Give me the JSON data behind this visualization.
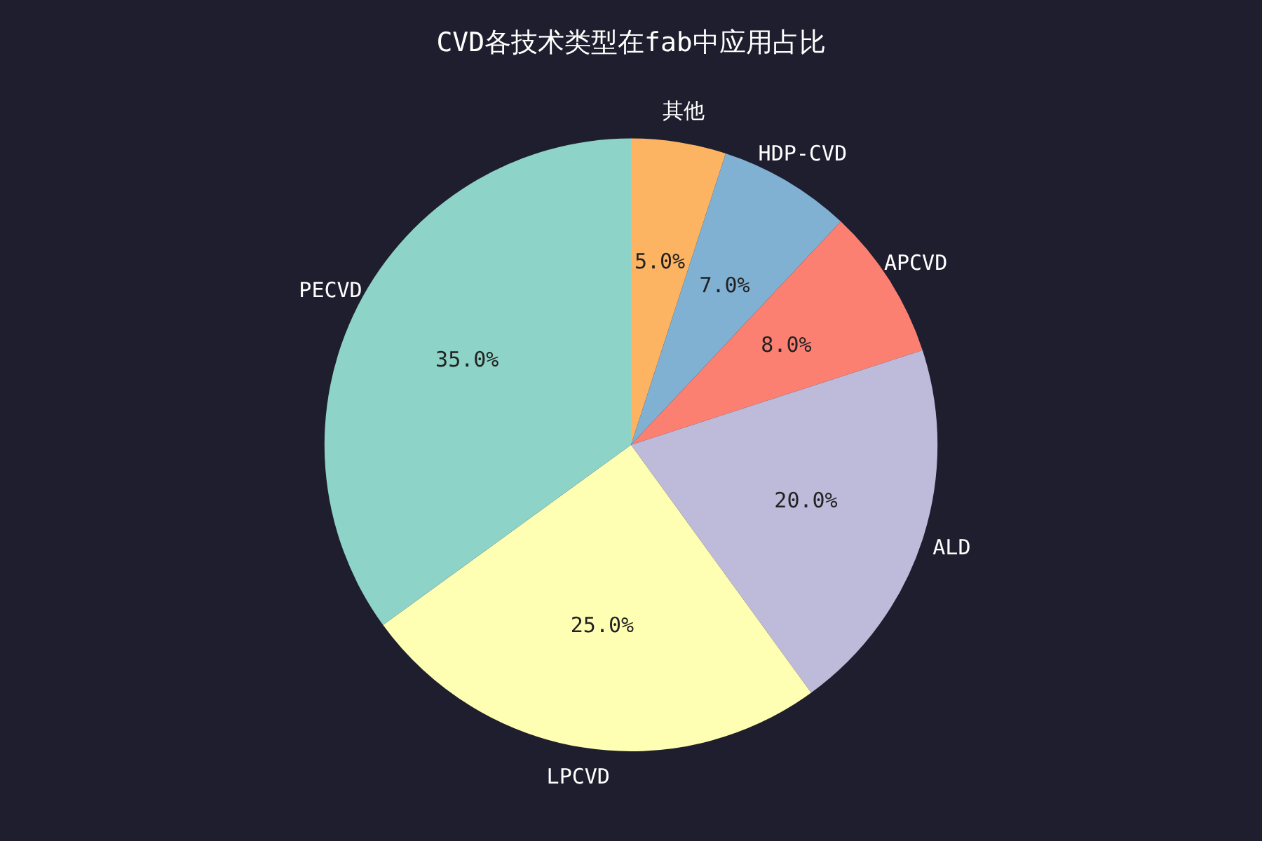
{
  "chart_data": {
    "type": "pie",
    "title": "CVD各技术类型在fab中应用占比",
    "categories": [
      "其他",
      "HDP-CVD",
      "APCVD",
      "ALD",
      "LPCVD",
      "PECVD"
    ],
    "values": [
      5,
      7,
      8,
      20,
      25,
      35
    ],
    "colors": [
      "#fdb462",
      "#80b1d3",
      "#fb8072",
      "#bebada",
      "#ffffb3",
      "#8dd3c7"
    ],
    "value_labels": [
      "5.0%",
      "7.0%",
      "8.0%",
      "20.0%",
      "25.0%",
      "35.0%"
    ],
    "legend": false
  }
}
